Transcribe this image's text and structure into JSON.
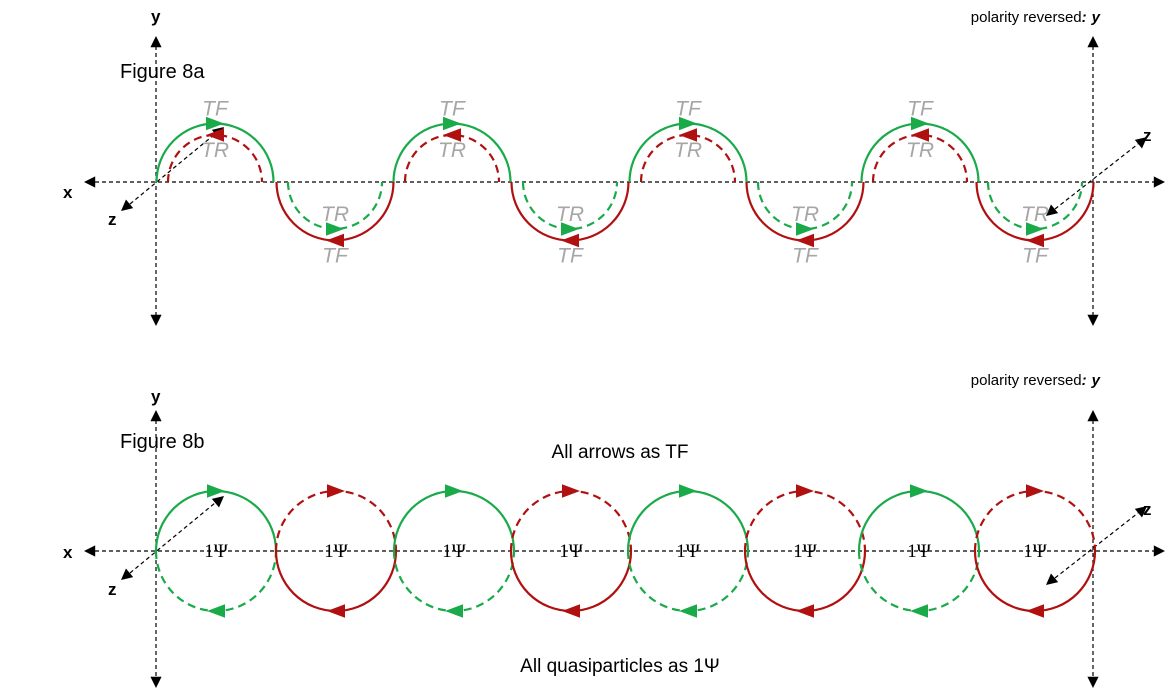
{
  "figure_a": {
    "title": "Figure 8a",
    "axis_y": "y",
    "axis_x": "x",
    "axis_z_left": "z",
    "axis_z_right": "z",
    "polarity_prefix": "polarity reversed",
    "polarity_colon": ":",
    "polarity_axis": "y",
    "upper_outer_label": "TF",
    "upper_inner_label": "TR",
    "lower_inner_label": "TR",
    "lower_outer_label": "TF"
  },
  "figure_b": {
    "title": "Figure 8b",
    "axis_y": "y",
    "axis_x": "x",
    "axis_z_left": "z",
    "axis_z_right": "z",
    "polarity_prefix": "polarity reversed",
    "polarity_colon": ":",
    "polarity_axis": "y",
    "top_caption": "All arrows as TF",
    "bottom_caption": "All quasiparticles as 1Ψ",
    "circle_label": "1Ψ"
  },
  "colors": {
    "green": "#1aaa4a",
    "red": "#b01010",
    "axis": "#000000",
    "label_gray": "#a6a6a6"
  }
}
